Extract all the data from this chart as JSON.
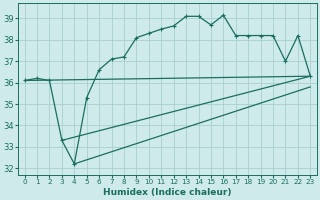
{
  "xlabel": "Humidex (Indice chaleur)",
  "bg_color": "#ceeaea",
  "grid_color": "#aacece",
  "line_color": "#1a6e60",
  "xlim": [
    -0.5,
    23.5
  ],
  "ylim": [
    31.7,
    39.7
  ],
  "xticks": [
    0,
    1,
    2,
    3,
    4,
    5,
    6,
    7,
    8,
    9,
    10,
    11,
    12,
    13,
    14,
    15,
    16,
    17,
    18,
    19,
    20,
    21,
    22,
    23
  ],
  "yticks": [
    32,
    33,
    34,
    35,
    36,
    37,
    38,
    39
  ],
  "main_x": [
    0,
    1,
    2,
    3,
    4,
    5,
    6,
    7,
    8,
    9,
    10,
    11,
    12,
    13,
    14,
    15,
    16,
    17,
    18,
    19,
    20,
    21,
    22,
    23
  ],
  "main_y": [
    36.1,
    36.2,
    36.1,
    33.3,
    32.2,
    35.3,
    36.6,
    37.1,
    37.2,
    38.1,
    38.3,
    38.5,
    38.65,
    39.1,
    39.1,
    38.7,
    39.15,
    38.2,
    38.2,
    38.2,
    38.2,
    37.0,
    38.2,
    36.3
  ],
  "line1_x": [
    0,
    23
  ],
  "line1_y": [
    36.1,
    36.3
  ],
  "line2_x": [
    3,
    23
  ],
  "line2_y": [
    33.3,
    36.3
  ],
  "line3_x": [
    4,
    23
  ],
  "line3_y": [
    32.2,
    35.8
  ]
}
